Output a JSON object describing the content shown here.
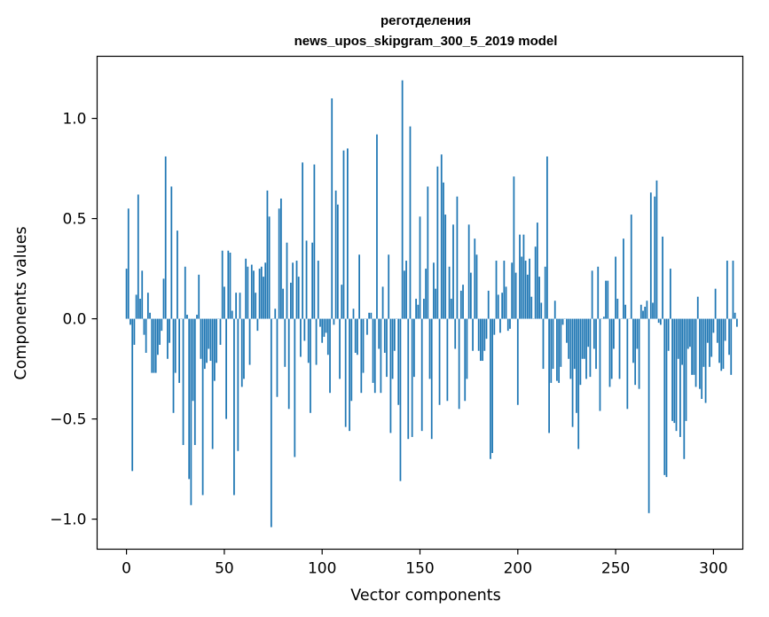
{
  "chart_data": {
    "type": "bar",
    "title": "реготделения",
    "subtitle": "news_upos_skipgram_300_5_2019 model",
    "xlabel": "Vector components",
    "ylabel": "Components values",
    "xlim": [
      -15,
      315
    ],
    "ylim": [
      -1.15,
      1.31
    ],
    "xticks": [
      0,
      50,
      100,
      150,
      200,
      250,
      300
    ],
    "xtick_labels": [
      "0",
      "50",
      "100",
      "150",
      "200",
      "250",
      "300"
    ],
    "yticks": [
      -1.0,
      -0.5,
      0.0,
      0.5,
      1.0
    ],
    "ytick_labels": [
      "−1.0",
      "−0.5",
      "0.0",
      "0.5",
      "1.0"
    ],
    "color": "#1f77b4",
    "grid": false,
    "values": [
      0.25,
      0.55,
      -0.03,
      -0.76,
      -0.13,
      0.12,
      0.62,
      0.1,
      0.24,
      -0.08,
      -0.17,
      0.13,
      0.03,
      -0.27,
      -0.27,
      -0.27,
      -0.18,
      -0.13,
      -0.06,
      0.2,
      0.81,
      -0.2,
      -0.12,
      0.66,
      -0.47,
      -0.27,
      0.44,
      -0.32,
      0.0,
      -0.63,
      0.26,
      0.02,
      -0.8,
      -0.93,
      -0.41,
      -0.63,
      0.02,
      0.22,
      -0.2,
      -0.88,
      -0.25,
      -0.22,
      -0.15,
      -0.21,
      -0.65,
      -0.31,
      -0.22,
      0.0,
      -0.13,
      0.34,
      0.16,
      -0.5,
      0.34,
      0.33,
      0.04,
      -0.88,
      0.13,
      -0.66,
      0.13,
      -0.34,
      -0.3,
      0.3,
      0.26,
      -0.23,
      0.27,
      0.24,
      0.13,
      -0.06,
      0.25,
      0.26,
      0.21,
      0.28,
      0.64,
      0.51,
      -1.04,
      0.0,
      0.05,
      -0.39,
      0.55,
      0.6,
      0.15,
      -0.24,
      0.38,
      -0.45,
      0.18,
      0.28,
      -0.69,
      0.29,
      0.21,
      -0.19,
      0.78,
      -0.11,
      0.39,
      -0.22,
      -0.47,
      0.38,
      0.77,
      -0.23,
      0.29,
      -0.04,
      -0.12,
      -0.09,
      -0.07,
      -0.18,
      -0.37,
      1.1,
      -0.03,
      0.64,
      0.57,
      -0.3,
      0.17,
      0.84,
      -0.54,
      0.85,
      -0.56,
      -0.41,
      0.05,
      -0.17,
      -0.18,
      0.32,
      -0.37,
      -0.27,
      0.0,
      -0.08,
      0.03,
      0.03,
      -0.32,
      -0.37,
      0.92,
      -0.15,
      -0.37,
      0.16,
      -0.17,
      -0.29,
      0.32,
      -0.57,
      -0.3,
      -0.16,
      0.0,
      -0.43,
      -0.81,
      1.19,
      0.24,
      0.29,
      -0.6,
      0.96,
      -0.59,
      -0.29,
      0.1,
      0.07,
      0.51,
      -0.56,
      0.1,
      0.25,
      0.66,
      -0.3,
      -0.6,
      0.28,
      0.15,
      0.76,
      -0.43,
      0.82,
      0.68,
      0.52,
      -0.41,
      0.26,
      0.1,
      0.47,
      -0.15,
      0.61,
      -0.45,
      0.14,
      0.17,
      -0.41,
      -0.3,
      0.47,
      0.23,
      -0.16,
      0.4,
      0.32,
      -0.16,
      -0.21,
      -0.21,
      -0.16,
      -0.1,
      0.14,
      -0.7,
      -0.67,
      -0.08,
      0.29,
      0.12,
      -0.07,
      0.13,
      0.29,
      0.16,
      -0.06,
      -0.05,
      0.28,
      0.71,
      0.23,
      -0.43,
      0.42,
      0.31,
      0.42,
      0.29,
      0.22,
      0.3,
      0.11,
      0.0,
      0.36,
      0.48,
      0.21,
      0.08,
      -0.25,
      0.26,
      0.81,
      -0.57,
      -0.32,
      -0.25,
      0.09,
      -0.31,
      -0.32,
      -0.24,
      -0.03,
      0.0,
      -0.12,
      -0.2,
      -0.3,
      -0.54,
      -0.25,
      -0.47,
      -0.65,
      -0.33,
      -0.2,
      -0.2,
      -0.3,
      -0.14,
      -0.29,
      0.24,
      -0.15,
      -0.25,
      0.26,
      -0.46,
      0.0,
      0.01,
      0.19,
      0.19,
      -0.34,
      -0.3,
      -0.15,
      0.31,
      0.1,
      -0.3,
      0.0,
      0.4,
      0.07,
      -0.45,
      0.0,
      0.52,
      -0.22,
      -0.33,
      -0.15,
      -0.35,
      0.07,
      0.04,
      0.06,
      0.09,
      -0.97,
      0.63,
      0.08,
      0.61,
      0.69,
      -0.02,
      -0.03,
      0.41,
      -0.78,
      -0.79,
      -0.16,
      0.25,
      -0.51,
      -0.52,
      -0.56,
      -0.2,
      -0.59,
      -0.23,
      -0.7,
      -0.51,
      -0.15,
      -0.14,
      -0.28,
      -0.28,
      -0.34,
      0.11,
      -0.35,
      -0.4,
      -0.24,
      -0.42,
      -0.12,
      -0.24,
      -0.19,
      -0.07,
      0.15,
      -0.12,
      -0.22,
      -0.26,
      -0.25,
      -0.11,
      0.29,
      -0.18,
      -0.28,
      0.29,
      0.03,
      -0.04
    ]
  }
}
